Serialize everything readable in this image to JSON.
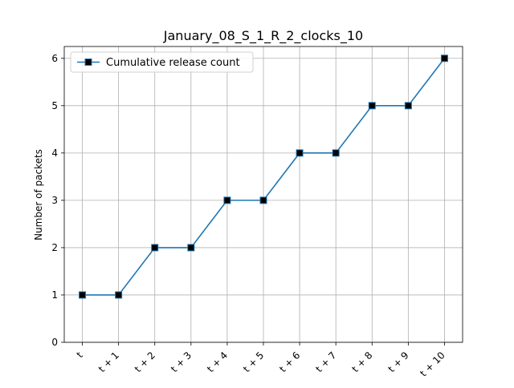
{
  "chart_data": {
    "type": "line",
    "title": "January_08_S_1_R_2_clocks_10",
    "xlabel": "",
    "ylabel": "Number of packets",
    "categories": [
      "t",
      "t + 1",
      "t + 2",
      "t + 3",
      "t + 4",
      "t + 5",
      "t + 6",
      "t + 7",
      "t + 8",
      "t + 9",
      "t + 10"
    ],
    "series": [
      {
        "name": "Cumulative release count",
        "values": [
          1,
          1,
          2,
          2,
          3,
          3,
          4,
          4,
          5,
          5,
          6
        ],
        "color": "#1f77b4",
        "marker": "square",
        "marker_fill": "#000000"
      }
    ],
    "ylim": [
      0,
      6.25
    ],
    "yticks": [
      0,
      1,
      2,
      3,
      4,
      5,
      6
    ],
    "grid": true,
    "legend_position": "top-left",
    "xtick_rotation": 45
  }
}
